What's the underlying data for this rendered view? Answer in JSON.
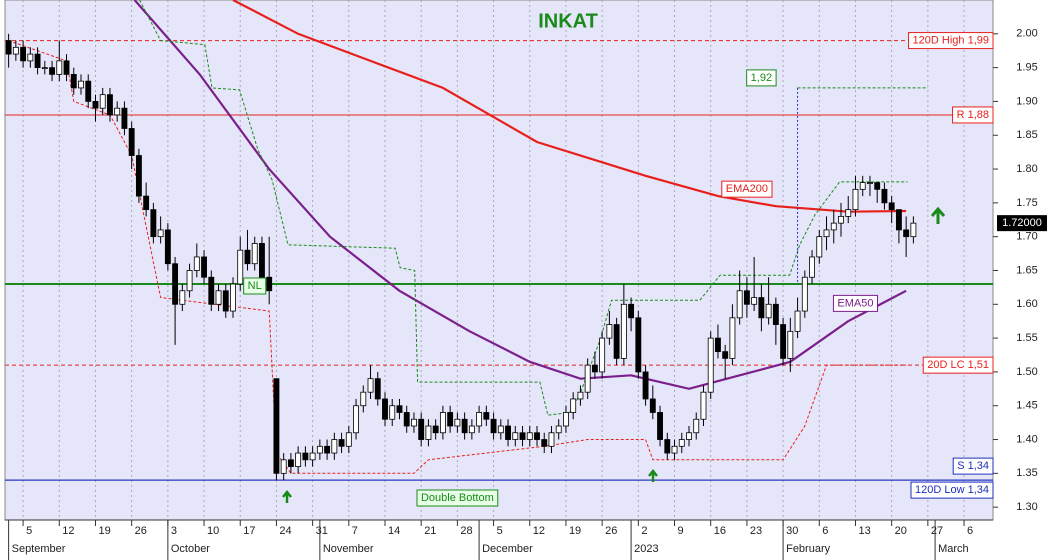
{
  "chart_data": {
    "type": "candlestick",
    "title": "INKAT",
    "ylim": [
      1.281,
      2.05
    ],
    "yticks": [
      {
        "value": 2,
        "label": "2.00"
      },
      1.95,
      {
        "value": 1.9,
        "label": "1.90"
      },
      1.85,
      {
        "value": 1.8,
        "label": "1.80"
      },
      1.75,
      {
        "value": 1.7,
        "label": "1.70"
      },
      1.65,
      {
        "value": 1.6,
        "label": "1.60"
      },
      1.55,
      {
        "value": 1.5,
        "label": "1.50"
      },
      1.45,
      {
        "value": 1.4,
        "label": "1.40"
      },
      1.35,
      {
        "value": 1.3,
        "label": "1.30"
      }
    ],
    "xlim": [
      -0.5,
      136
    ],
    "xticks": [
      {
        "value": 2,
        "label": "5"
      },
      {
        "value": 7,
        "label": "12"
      },
      {
        "value": 12,
        "label": "19"
      },
      {
        "value": 17,
        "label": "26"
      },
      {
        "value": 22,
        "label": "3"
      },
      {
        "value": 27,
        "label": "10"
      },
      {
        "value": 32,
        "label": "17"
      },
      {
        "value": 37,
        "label": "24"
      },
      {
        "value": 42,
        "label": "31"
      },
      {
        "value": 47,
        "label": "7"
      },
      {
        "value": 52,
        "label": "14"
      },
      {
        "value": 57,
        "label": "21"
      },
      {
        "value": 62,
        "label": "28"
      },
      {
        "value": 67,
        "label": "5"
      },
      {
        "value": 72,
        "label": "12"
      },
      {
        "value": 77,
        "label": "19"
      },
      {
        "value": 82,
        "label": "26"
      },
      {
        "value": 87,
        "label": "2"
      },
      {
        "value": 92,
        "label": "9"
      },
      {
        "value": 97,
        "label": "16"
      },
      {
        "value": 102,
        "label": "23"
      },
      {
        "value": 107,
        "label": "30"
      },
      {
        "value": 112,
        "label": "6"
      },
      {
        "value": 117,
        "label": "13"
      },
      {
        "value": 122,
        "label": "20"
      },
      {
        "value": 127,
        "label": "27"
      },
      {
        "value": 132,
        "label": "6"
      }
    ],
    "month_ticks": [
      {
        "value": 0,
        "label": "September"
      },
      {
        "value": 22,
        "label": "October"
      },
      {
        "value": 43,
        "label": "November"
      },
      {
        "value": 65,
        "label": "December"
      },
      {
        "value": 86,
        "label": "2023"
      },
      {
        "value": 107,
        "label": "February"
      },
      {
        "value": 128,
        "label": "March"
      }
    ],
    "grid": true,
    "up_color": "#ffffff",
    "down_color": "#000000",
    "candles": [
      [
        1.99,
        2.0,
        1.95,
        1.97
      ],
      [
        1.97,
        1.99,
        1.96,
        1.98
      ],
      [
        1.98,
        1.99,
        1.95,
        1.96
      ],
      [
        1.96,
        1.98,
        1.95,
        1.97
      ],
      [
        1.97,
        1.98,
        1.94,
        1.95
      ],
      [
        1.95,
        1.96,
        1.94,
        1.95
      ],
      [
        1.95,
        1.96,
        1.93,
        1.94
      ],
      [
        1.94,
        1.99,
        1.93,
        1.96
      ],
      [
        1.96,
        1.97,
        1.93,
        1.94
      ],
      [
        1.94,
        1.95,
        1.91,
        1.92
      ],
      [
        1.92,
        1.94,
        1.91,
        1.93
      ],
      [
        1.93,
        1.94,
        1.89,
        1.9
      ],
      [
        1.9,
        1.91,
        1.87,
        1.89
      ],
      [
        1.89,
        1.92,
        1.88,
        1.91
      ],
      [
        1.91,
        1.92,
        1.87,
        1.88
      ],
      [
        1.88,
        1.9,
        1.87,
        1.89
      ],
      [
        1.89,
        1.9,
        1.85,
        1.86
      ],
      [
        1.86,
        1.87,
        1.8,
        1.82
      ],
      [
        1.82,
        1.83,
        1.75,
        1.76
      ],
      [
        1.76,
        1.78,
        1.73,
        1.74
      ],
      [
        1.74,
        1.75,
        1.69,
        1.7
      ],
      [
        1.7,
        1.73,
        1.69,
        1.71
      ],
      [
        1.71,
        1.72,
        1.65,
        1.66
      ],
      [
        1.66,
        1.67,
        1.54,
        1.6
      ],
      [
        1.6,
        1.63,
        1.59,
        1.62
      ],
      [
        1.62,
        1.66,
        1.61,
        1.65
      ],
      [
        1.65,
        1.69,
        1.64,
        1.67
      ],
      [
        1.67,
        1.68,
        1.63,
        1.64
      ],
      [
        1.64,
        1.65,
        1.59,
        1.6
      ],
      [
        1.6,
        1.63,
        1.59,
        1.62
      ],
      [
        1.62,
        1.63,
        1.58,
        1.59
      ],
      [
        1.59,
        1.64,
        1.58,
        1.63
      ],
      [
        1.63,
        1.7,
        1.62,
        1.68
      ],
      [
        1.68,
        1.71,
        1.65,
        1.66
      ],
      [
        1.66,
        1.7,
        1.65,
        1.69
      ],
      [
        1.69,
        1.7,
        1.63,
        1.64
      ],
      [
        1.64,
        1.7,
        1.6,
        1.62
      ],
      [
        1.49,
        1.49,
        1.34,
        1.35
      ],
      [
        1.35,
        1.38,
        1.34,
        1.37
      ],
      [
        1.37,
        1.38,
        1.35,
        1.36
      ],
      [
        1.36,
        1.39,
        1.35,
        1.38
      ],
      [
        1.38,
        1.39,
        1.36,
        1.37
      ],
      [
        1.37,
        1.39,
        1.36,
        1.38
      ],
      [
        1.38,
        1.4,
        1.37,
        1.39
      ],
      [
        1.39,
        1.4,
        1.37,
        1.38
      ],
      [
        1.38,
        1.41,
        1.37,
        1.4
      ],
      [
        1.4,
        1.41,
        1.38,
        1.39
      ],
      [
        1.39,
        1.42,
        1.38,
        1.41
      ],
      [
        1.41,
        1.46,
        1.4,
        1.45
      ],
      [
        1.45,
        1.48,
        1.44,
        1.47
      ],
      [
        1.47,
        1.51,
        1.46,
        1.49
      ],
      [
        1.49,
        1.5,
        1.45,
        1.46
      ],
      [
        1.46,
        1.47,
        1.42,
        1.43
      ],
      [
        1.43,
        1.46,
        1.42,
        1.45
      ],
      [
        1.45,
        1.46,
        1.43,
        1.44
      ],
      [
        1.44,
        1.45,
        1.41,
        1.42
      ],
      [
        1.42,
        1.44,
        1.41,
        1.43
      ],
      [
        1.43,
        1.44,
        1.39,
        1.4
      ],
      [
        1.4,
        1.43,
        1.39,
        1.42
      ],
      [
        1.42,
        1.43,
        1.4,
        1.41
      ],
      [
        1.41,
        1.45,
        1.4,
        1.44
      ],
      [
        1.44,
        1.45,
        1.41,
        1.42
      ],
      [
        1.42,
        1.44,
        1.41,
        1.43
      ],
      [
        1.43,
        1.44,
        1.4,
        1.41
      ],
      [
        1.41,
        1.43,
        1.4,
        1.42
      ],
      [
        1.42,
        1.45,
        1.41,
        1.44
      ],
      [
        1.44,
        1.45,
        1.42,
        1.43
      ],
      [
        1.43,
        1.44,
        1.4,
        1.41
      ],
      [
        1.41,
        1.43,
        1.4,
        1.42
      ],
      [
        1.42,
        1.43,
        1.39,
        1.4
      ],
      [
        1.4,
        1.42,
        1.39,
        1.41
      ],
      [
        1.41,
        1.42,
        1.39,
        1.4
      ],
      [
        1.4,
        1.42,
        1.39,
        1.41
      ],
      [
        1.41,
        1.42,
        1.39,
        1.4
      ],
      [
        1.4,
        1.41,
        1.38,
        1.39
      ],
      [
        1.39,
        1.42,
        1.38,
        1.41
      ],
      [
        1.41,
        1.43,
        1.4,
        1.42
      ],
      [
        1.42,
        1.45,
        1.41,
        1.44
      ],
      [
        1.44,
        1.47,
        1.43,
        1.46
      ],
      [
        1.46,
        1.48,
        1.45,
        1.47
      ],
      [
        1.47,
        1.52,
        1.46,
        1.51
      ],
      [
        1.51,
        1.53,
        1.49,
        1.5
      ],
      [
        1.5,
        1.56,
        1.49,
        1.55
      ],
      [
        1.55,
        1.59,
        1.54,
        1.57
      ],
      [
        1.57,
        1.58,
        1.51,
        1.52
      ],
      [
        1.52,
        1.63,
        1.51,
        1.6
      ],
      [
        1.6,
        1.61,
        1.56,
        1.58
      ],
      [
        1.58,
        1.59,
        1.49,
        1.5
      ],
      [
        1.5,
        1.51,
        1.45,
        1.46
      ],
      [
        1.46,
        1.48,
        1.43,
        1.44
      ],
      [
        1.44,
        1.45,
        1.39,
        1.4
      ],
      [
        1.4,
        1.41,
        1.37,
        1.38
      ],
      [
        1.38,
        1.4,
        1.37,
        1.39
      ],
      [
        1.39,
        1.41,
        1.38,
        1.4
      ],
      [
        1.4,
        1.42,
        1.39,
        1.41
      ],
      [
        1.41,
        1.44,
        1.4,
        1.43
      ],
      [
        1.43,
        1.48,
        1.42,
        1.47
      ],
      [
        1.47,
        1.56,
        1.46,
        1.55
      ],
      [
        1.55,
        1.57,
        1.52,
        1.53
      ],
      [
        1.53,
        1.54,
        1.49,
        1.52
      ],
      [
        1.52,
        1.6,
        1.51,
        1.58
      ],
      [
        1.58,
        1.65,
        1.57,
        1.62
      ],
      [
        1.62,
        1.64,
        1.58,
        1.6
      ],
      [
        1.6,
        1.67,
        1.59,
        1.61
      ],
      [
        1.61,
        1.63,
        1.56,
        1.58
      ],
      [
        1.58,
        1.64,
        1.57,
        1.6
      ],
      [
        1.6,
        1.61,
        1.54,
        1.57
      ],
      [
        1.57,
        1.58,
        1.51,
        1.52
      ],
      [
        1.52,
        1.58,
        1.5,
        1.56
      ],
      [
        1.56,
        1.61,
        1.55,
        1.59
      ],
      [
        1.59,
        1.65,
        1.58,
        1.64
      ],
      [
        1.64,
        1.68,
        1.63,
        1.67
      ],
      [
        1.67,
        1.71,
        1.66,
        1.7
      ],
      [
        1.7,
        1.73,
        1.68,
        1.71
      ],
      [
        1.71,
        1.74,
        1.69,
        1.72
      ],
      [
        1.72,
        1.75,
        1.7,
        1.73
      ],
      [
        1.73,
        1.76,
        1.72,
        1.74
      ],
      [
        1.74,
        1.79,
        1.73,
        1.77
      ],
      [
        1.77,
        1.79,
        1.76,
        1.78
      ],
      [
        1.78,
        1.79,
        1.76,
        1.78
      ],
      [
        1.78,
        1.78,
        1.75,
        1.77
      ],
      [
        1.77,
        1.78,
        1.74,
        1.75
      ],
      [
        1.75,
        1.76,
        1.72,
        1.74
      ],
      [
        1.74,
        1.74,
        1.69,
        1.71
      ],
      [
        1.71,
        1.73,
        1.67,
        1.7
      ],
      [
        1.7,
        1.73,
        1.69,
        1.72
      ]
    ],
    "lines": [
      {
        "name": "EMA200",
        "color": "#e8201c",
        "dash": false,
        "x": [
          31,
          40,
          50,
          60,
          73,
          88,
          98,
          106,
          116,
          124
        ],
        "values": [
          2.05,
          2.0,
          1.96,
          1.92,
          1.84,
          1.79,
          1.76,
          1.745,
          1.737,
          1.738
        ]
      },
      {
        "name": "EMA50",
        "color": "#7b1f8a",
        "dash": false,
        "x": [
          17.4,
          26.4,
          36,
          44.4,
          54,
          63.7,
          72,
          79,
          86,
          94,
          101,
          108,
          116,
          124
        ],
        "values": [
          2.05,
          1.94,
          1.8,
          1.7,
          1.62,
          1.56,
          1.515,
          1.49,
          1.495,
          1.475,
          1.495,
          1.515,
          1.575,
          1.62
        ]
      },
      {
        "color": "#1a8a1a",
        "dash": true,
        "x": [
          18.1,
          21,
          27.1,
          28.1,
          31.9,
          34.4,
          36.4,
          38.6,
          53.4,
          54.1,
          56.1,
          56.5,
          73.4,
          74.5,
          77.5,
          78.9,
          81.7,
          83.3,
          95.5,
          98.3,
          107.9,
          109.3,
          111.4,
          114.8,
          124.2
        ],
        "values": [
          2.05,
          1.99,
          1.984,
          1.92,
          1.917,
          1.83,
          1.784,
          1.688,
          1.683,
          1.654,
          1.65,
          1.485,
          1.485,
          1.436,
          1.44,
          1.466,
          1.547,
          1.606,
          1.606,
          1.643,
          1.643,
          1.688,
          1.732,
          1.781,
          1.781
        ]
      },
      {
        "color": "#e8201c",
        "dash": true,
        "x": [
          0,
          8,
          9,
          14,
          17,
          21,
          36,
          37,
          39,
          56,
          58,
          74,
          80,
          88,
          89,
          107,
          110,
          113,
          124
        ],
        "values": [
          1.99,
          1.96,
          1.9,
          1.88,
          1.82,
          1.61,
          1.59,
          1.38,
          1.35,
          1.35,
          1.37,
          1.39,
          1.4,
          1.4,
          1.37,
          1.37,
          1.42,
          1.51,
          1.51
        ]
      }
    ],
    "levels": [
      {
        "value": 1.99,
        "label": "120D High 1,99",
        "color": "#e8201c",
        "dash": true
      },
      {
        "value": 1.88,
        "label": "R 1,88",
        "color": "#e8201c",
        "dash": false
      },
      {
        "value": 1.63,
        "label": "NL",
        "color": "#1a8a1a",
        "dash": false
      },
      {
        "value": 1.51,
        "label": "20D LC 1,51",
        "color": "#e8201c",
        "dash": true
      },
      {
        "value": 1.34,
        "label": "S 1,34",
        "color": "#1f2fbf",
        "dash": false
      },
      {
        "value": 1.34,
        "label": "120D Low 1,34",
        "color": "#1f2fbf",
        "dash": false
      }
    ],
    "annotations": {
      "pattern": "Double Bottom",
      "target": {
        "value": 1.92,
        "label": "1,92"
      }
    },
    "last_price": {
      "value": 1.72,
      "label": "1.72000"
    }
  }
}
